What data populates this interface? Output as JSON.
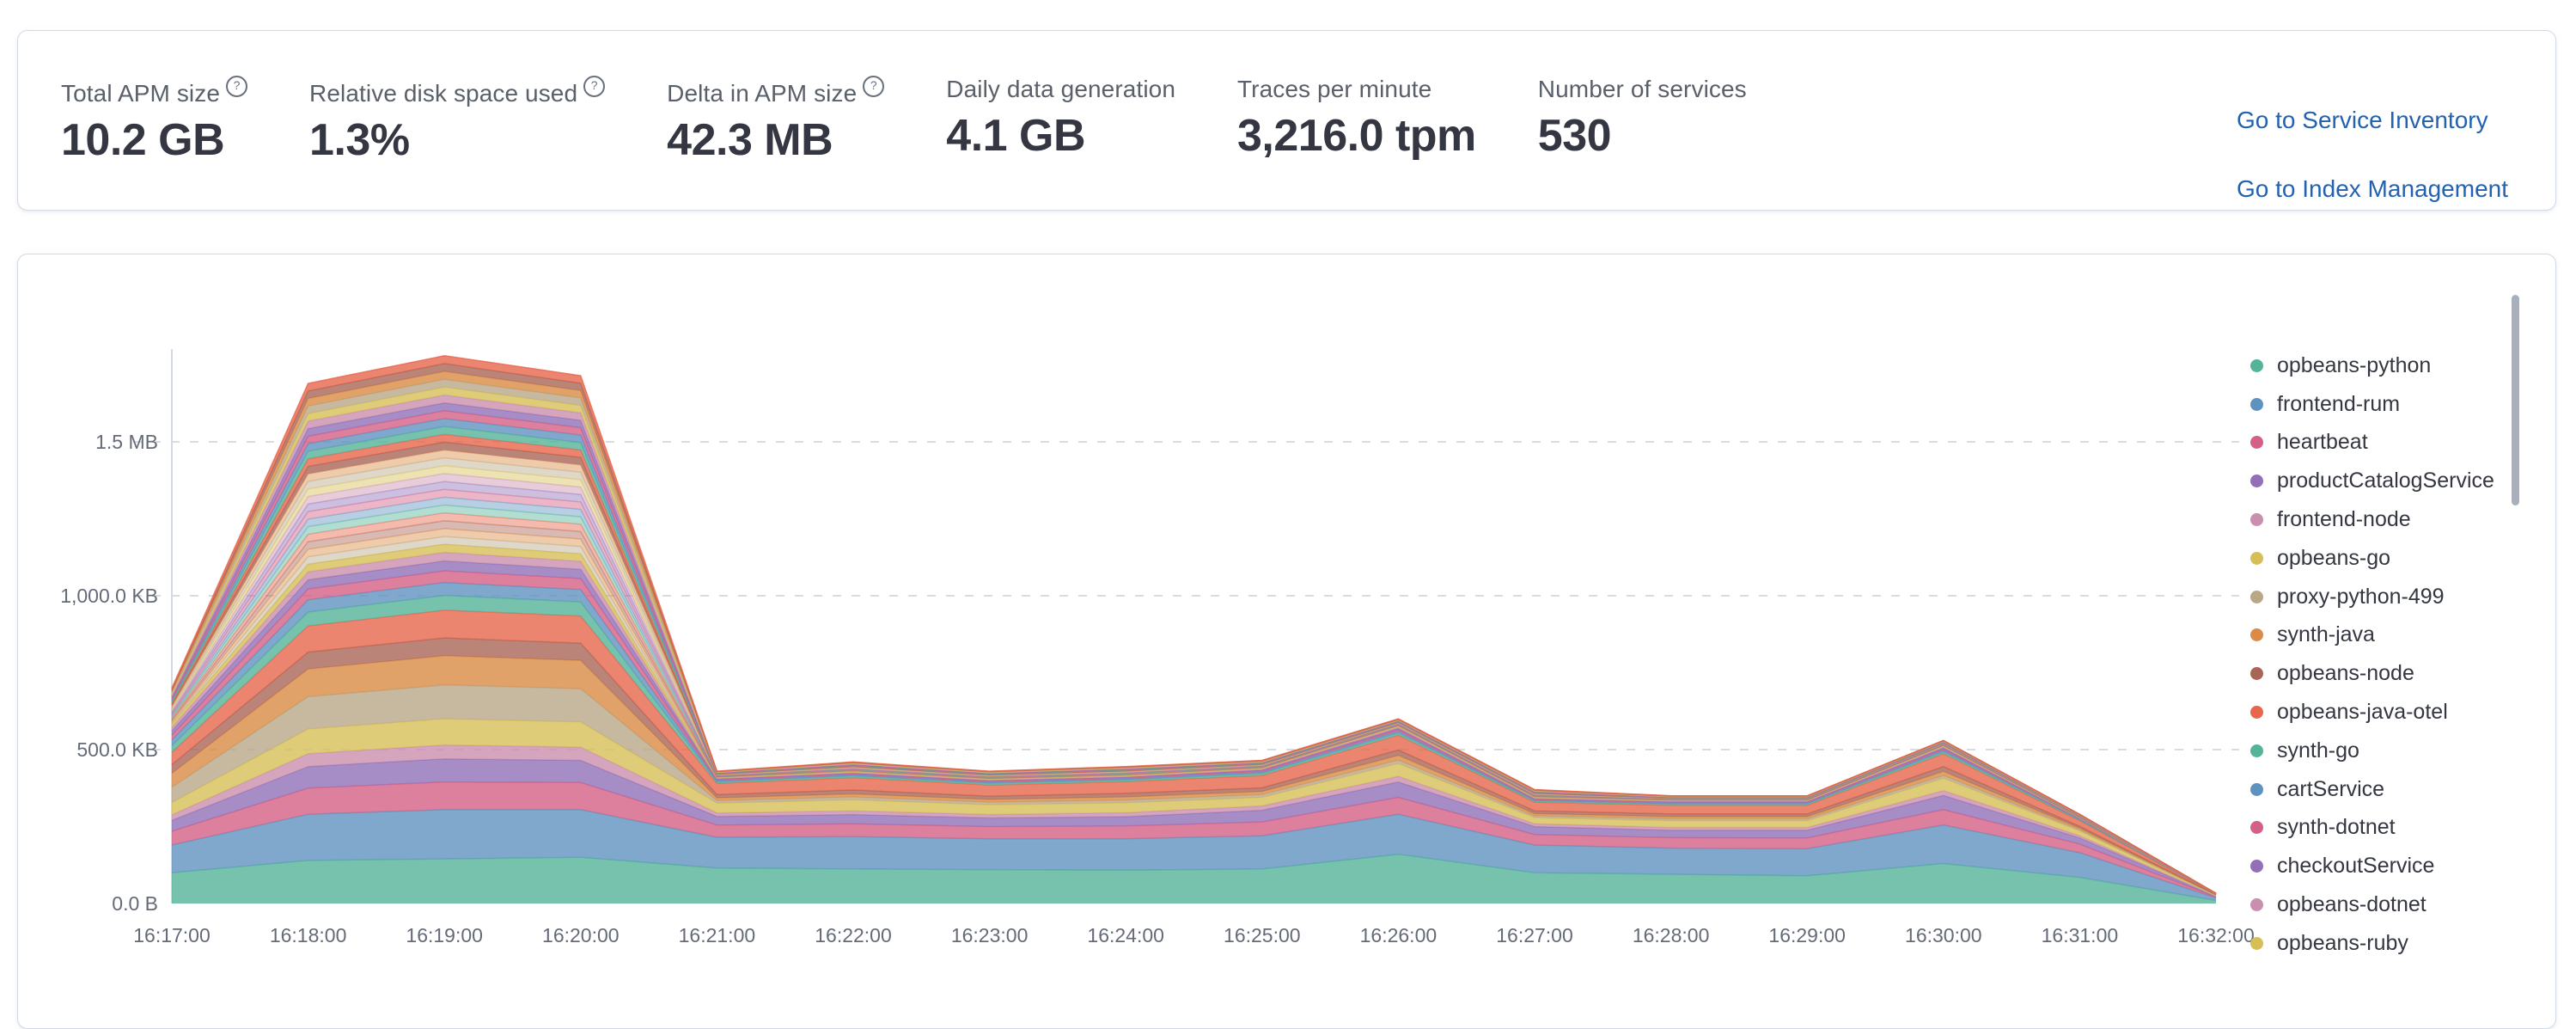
{
  "stats_panel": {
    "stats": [
      {
        "label": "Total APM size",
        "value": "10.2 GB",
        "has_help": true
      },
      {
        "label": "Relative disk space used",
        "value": "1.3%",
        "has_help": true
      },
      {
        "label": "Delta in APM size",
        "value": "42.3 MB",
        "has_help": true
      },
      {
        "label": "Daily data generation",
        "value": "4.1 GB",
        "has_help": false
      },
      {
        "label": "Traces per minute",
        "value": "3,216.0 tpm",
        "has_help": false
      },
      {
        "label": "Number of services",
        "value": "530",
        "has_help": false
      }
    ],
    "links": [
      {
        "label": "Go to Service Inventory"
      },
      {
        "label": "Go to Index Management"
      }
    ]
  },
  "icons": {
    "help_glyph": "?"
  },
  "colors": {
    "link_blue": "#2262b0",
    "axis_text": "#646a77",
    "grid_line": "#d7dbe4",
    "axis_line": "#d3dae6"
  },
  "chart_data": {
    "type": "area",
    "stacked": true,
    "title": "",
    "xlabel": "",
    "ylabel": "",
    "y_unit": "KB",
    "ylim": [
      0,
      1875
    ],
    "grid": "horizontal-dashed",
    "legend_position": "right",
    "x": [
      "16:17:00",
      "16:18:00",
      "16:19:00",
      "16:20:00",
      "16:21:00",
      "16:22:00",
      "16:23:00",
      "16:24:00",
      "16:25:00",
      "16:26:00",
      "16:27:00",
      "16:28:00",
      "16:29:00",
      "16:30:00",
      "16:31:00",
      "16:32:00"
    ],
    "y_tick_labels": [
      "0.0 B",
      "500.0 KB",
      "1,000.0 KB",
      "1.5 MB"
    ],
    "y_tick_values_kb": [
      0,
      500,
      1000,
      1500
    ],
    "palette": [
      "#54B399",
      "#6092C0",
      "#D36086",
      "#9170B8",
      "#CA8EAE",
      "#D6BF57",
      "#B9A888",
      "#DA8B45",
      "#AA6556",
      "#E7664C"
    ],
    "series": [
      {
        "name": "opbeans-python",
        "values": [
          100,
          140,
          145,
          150,
          115,
          112,
          110,
          108,
          112,
          160,
          100,
          95,
          90,
          130,
          85,
          10
        ]
      },
      {
        "name": "frontend-rum",
        "values": [
          90,
          150,
          160,
          155,
          100,
          105,
          100,
          102,
          108,
          130,
          90,
          85,
          88,
          125,
          80,
          8
        ]
      },
      {
        "name": "heartbeat",
        "values": [
          45,
          85,
          90,
          88,
          40,
          42,
          40,
          42,
          45,
          55,
          34,
          34,
          35,
          50,
          28,
          3
        ]
      },
      {
        "name": "productCatalogService",
        "values": [
          35,
          70,
          75,
          72,
          28,
          30,
          28,
          30,
          38,
          50,
          26,
          24,
          25,
          46,
          20,
          2
        ]
      },
      {
        "name": "frontend-node",
        "values": [
          18,
          42,
          45,
          43,
          11,
          12,
          11,
          13,
          14,
          18,
          9,
          9,
          9,
          16,
          7,
          1
        ]
      },
      {
        "name": "opbeans-go",
        "values": [
          40,
          80,
          85,
          82,
          32,
          36,
          32,
          32,
          28,
          42,
          20,
          22,
          22,
          40,
          16,
          2
        ]
      },
      {
        "name": "proxy-python-499",
        "values": [
          50,
          105,
          110,
          108,
          8,
          9,
          8,
          9,
          9,
          11,
          6,
          6,
          6,
          9,
          4,
          1
        ]
      },
      {
        "name": "synth-java",
        "values": [
          45,
          90,
          95,
          92,
          9,
          10,
          9,
          10,
          10,
          15,
          7,
          7,
          7,
          13,
          5,
          1
        ]
      },
      {
        "name": "opbeans-node",
        "values": [
          28,
          55,
          58,
          56,
          11,
          13,
          11,
          12,
          12,
          18,
          9,
          9,
          9,
          16,
          6,
          1
        ]
      },
      {
        "name": "opbeans-java-otel",
        "values": [
          40,
          85,
          90,
          88,
          36,
          40,
          36,
          38,
          40,
          48,
          28,
          28,
          28,
          42,
          18,
          2
        ]
      },
      {
        "name": "synth-go",
        "values": [
          22,
          45,
          48,
          46,
          5,
          5,
          5,
          5,
          6,
          7,
          4,
          4,
          4,
          6,
          3,
          0
        ]
      },
      {
        "name": "cartService",
        "values": [
          18,
          40,
          42,
          40,
          4,
          4,
          4,
          4,
          5,
          6,
          3,
          3,
          3,
          5,
          2,
          0
        ]
      },
      {
        "name": "synth-dotnet",
        "values": [
          16,
          35,
          38,
          36,
          3,
          3,
          3,
          3,
          4,
          5,
          3,
          3,
          3,
          4,
          2,
          0
        ]
      },
      {
        "name": "checkoutService",
        "values": [
          14,
          30,
          32,
          30,
          3,
          3,
          3,
          3,
          3,
          4,
          2,
          2,
          2,
          4,
          1,
          0
        ]
      },
      {
        "name": "opbeans-dotnet",
        "values": [
          11,
          26,
          28,
          26,
          2,
          2,
          2,
          2,
          3,
          4,
          2,
          2,
          2,
          3,
          1,
          0
        ]
      },
      {
        "name": "opbeans-ruby",
        "values": [
          10,
          24,
          26,
          24,
          2,
          2,
          2,
          2,
          2,
          3,
          2,
          2,
          2,
          3,
          1,
          0
        ]
      }
    ],
    "unnamed_overflow_layers": {
      "comment": "additional thin stacked service layers visible above the named legend entries",
      "count": 24,
      "total_values": [
        118,
        588,
        613,
        579,
        21,
        32,
        26,
        30,
        26,
        24,
        25,
        15,
        15,
        18,
        11,
        2
      ]
    }
  }
}
